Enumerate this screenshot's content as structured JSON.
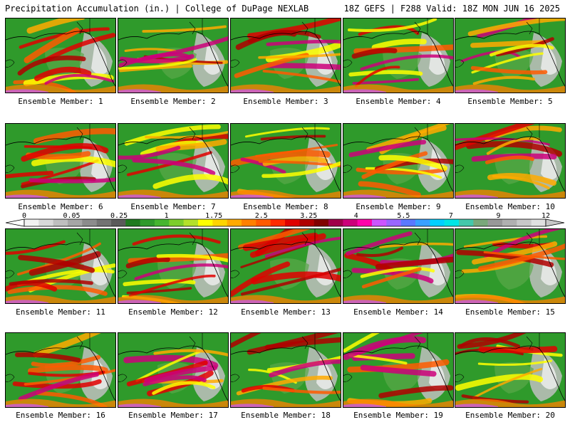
{
  "header": {
    "title_left": "Precipitation Accumulation (in.) | College of DuPage NEXLAB",
    "title_right": "18Z GEFS | F288 Valid: 18Z MON JUN 16 2025"
  },
  "colorbar": {
    "ticks": [
      "0",
      "0.05",
      "0.25",
      "1",
      "1.75",
      "2.5",
      "3.25",
      "4",
      "5.5",
      "7",
      "9",
      "12"
    ],
    "colors": [
      "#f2f2f2",
      "#d9d9d9",
      "#bfbfbf",
      "#a6a6a6",
      "#8c8c8c",
      "#737373",
      "#5a5a5a",
      "#1f7a1f",
      "#2f9a2b",
      "#46b52f",
      "#7ccd2c",
      "#b4e02a",
      "#ffff00",
      "#ffd400",
      "#ffaa00",
      "#ff8000",
      "#ff5a00",
      "#ff2a00",
      "#e00000",
      "#b00000",
      "#800000",
      "#a0004a",
      "#cc007a",
      "#ff00aa",
      "#cc55ff",
      "#9966ff",
      "#5a78ff",
      "#3aa0ff",
      "#00d0ff",
      "#00e5e5",
      "#44c8aa",
      "#7aa87a",
      "#989898",
      "#b0b0b0",
      "#c8c8c8",
      "#e0e0e0"
    ]
  },
  "members": [
    {
      "label": "Ensemble Member: 1"
    },
    {
      "label": "Ensemble Member: 2"
    },
    {
      "label": "Ensemble Member: 3"
    },
    {
      "label": "Ensemble Member: 4"
    },
    {
      "label": "Ensemble Member: 5"
    },
    {
      "label": "Ensemble Member: 6"
    },
    {
      "label": "Ensemble Member: 7"
    },
    {
      "label": "Ensemble Member: 8"
    },
    {
      "label": "Ensemble Member: 9"
    },
    {
      "label": "Ensemble Member: 10"
    },
    {
      "label": "Ensemble Member: 11"
    },
    {
      "label": "Ensemble Member: 12"
    },
    {
      "label": "Ensemble Member: 13"
    },
    {
      "label": "Ensemble Member: 14"
    },
    {
      "label": "Ensemble Member: 15"
    },
    {
      "label": "Ensemble Member: 16"
    },
    {
      "label": "Ensemble Member: 17"
    },
    {
      "label": "Ensemble Member: 18"
    },
    {
      "label": "Ensemble Member: 19"
    },
    {
      "label": "Ensemble Member: 20"
    }
  ]
}
